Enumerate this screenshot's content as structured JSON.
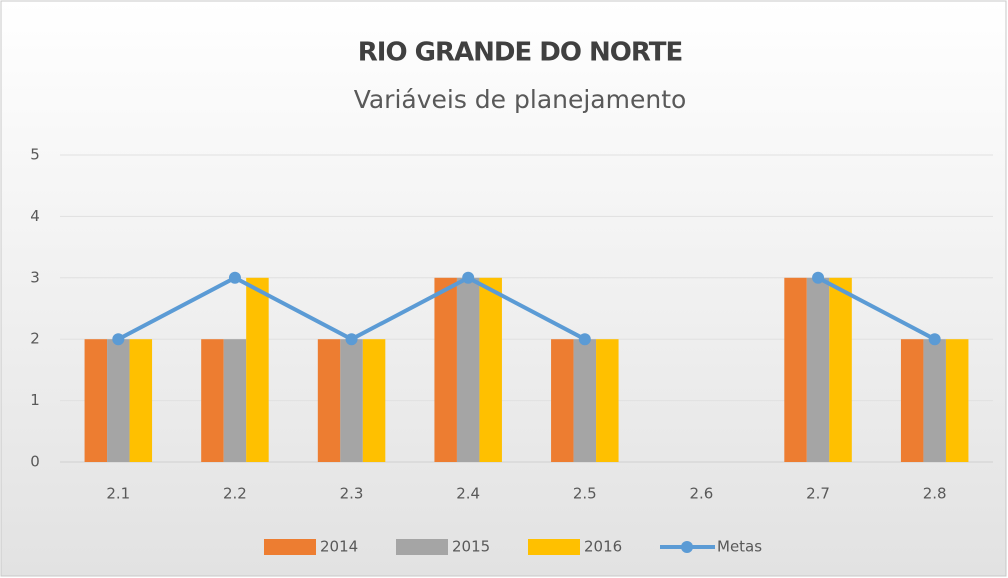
{
  "chart_data": {
    "type": "bar",
    "title": "RIO GRANDE DO NORTE",
    "subtitle": "Variáveis de planejamento",
    "categories": [
      "2.1",
      "2.2",
      "2.3",
      "2.4",
      "2.5",
      "2.6",
      "2.7",
      "2.8"
    ],
    "series": [
      {
        "name": "2014",
        "color": "#ed7d31",
        "values": [
          2,
          2,
          2,
          3,
          2,
          null,
          3,
          2
        ]
      },
      {
        "name": "2015",
        "color": "#a5a5a5",
        "values": [
          2,
          2,
          2,
          3,
          2,
          null,
          3,
          2
        ]
      },
      {
        "name": "2016",
        "color": "#ffc000",
        "values": [
          2,
          3,
          2,
          3,
          2,
          null,
          3,
          2
        ]
      },
      {
        "name": "Metas",
        "color": "#5b9bd5",
        "type": "line",
        "values": [
          2,
          3,
          2,
          3,
          2,
          null,
          3,
          2
        ]
      }
    ],
    "ylim": [
      0,
      5
    ],
    "yticks": [
      0,
      1,
      2,
      3,
      4,
      5
    ],
    "grid": true,
    "legend": "bottom"
  }
}
